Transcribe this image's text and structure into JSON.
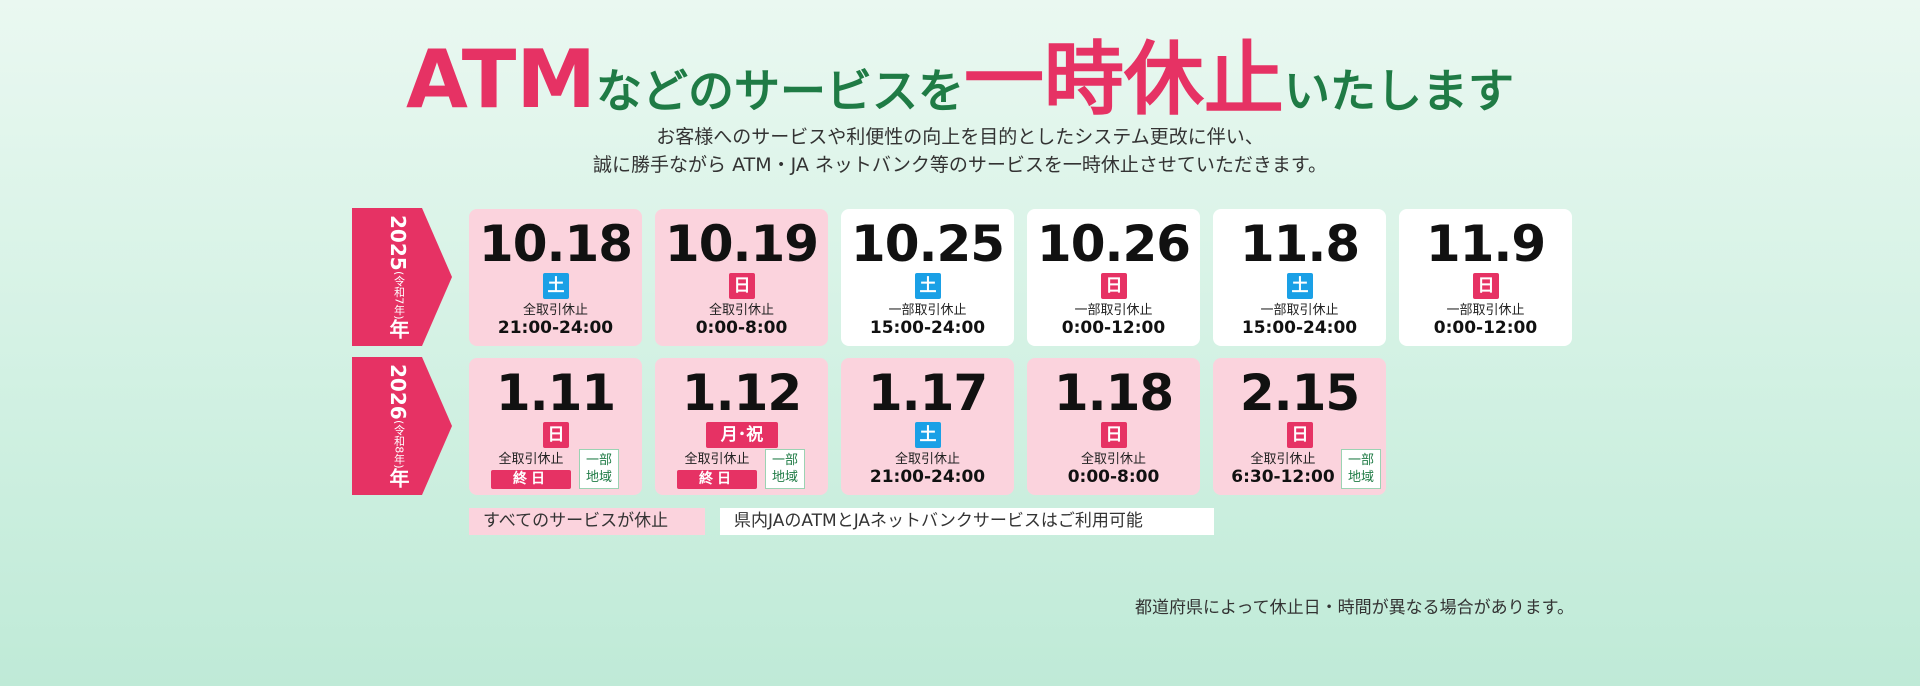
{
  "title": {
    "atm": "ATM",
    "part1": "などのサービスを",
    "highlight": "一時休止",
    "part2": "いたします"
  },
  "subtitle": {
    "line1": "お客様へのサービスや利便性の向上を目的としたシステム更改に伴い、",
    "line2": "誠に勝手ながら ATM・JA ネットバンク等のサービスを一時休止させていただきます。"
  },
  "years": [
    {
      "year": "2025",
      "era": "(令和7年)",
      "suffix": "年"
    },
    {
      "year": "2026",
      "era": "(令和8年)",
      "suffix": "年"
    }
  ],
  "row1": [
    {
      "date": "10.18",
      "day": "土",
      "kind": "全取引休止",
      "time": "21:00-24:00",
      "pink": true,
      "dayType": "sat"
    },
    {
      "date": "10.19",
      "day": "日",
      "kind": "全取引休止",
      "time": "0:00-8:00",
      "pink": true,
      "dayType": "sun"
    },
    {
      "date": "10.25",
      "day": "土",
      "kind": "一部取引休止",
      "time": "15:00-24:00",
      "pink": false,
      "dayType": "sat"
    },
    {
      "date": "10.26",
      "day": "日",
      "kind": "一部取引休止",
      "time": "0:00-12:00",
      "pink": false,
      "dayType": "sun"
    },
    {
      "date": "11.8",
      "day": "土",
      "kind": "一部取引休止",
      "time": "15:00-24:00",
      "pink": false,
      "dayType": "sat"
    },
    {
      "date": "11.9",
      "day": "日",
      "kind": "一部取引休止",
      "time": "0:00-12:00",
      "pink": false,
      "dayType": "sun"
    }
  ],
  "row2": [
    {
      "date": "1.11",
      "day": "日",
      "kind": "全取引休止",
      "allday": "終日",
      "region": [
        "一部",
        "地域"
      ],
      "dayType": "sun"
    },
    {
      "date": "1.12",
      "day": "月･祝",
      "kind": "全取引休止",
      "allday": "終日",
      "region": [
        "一部",
        "地域"
      ],
      "dayType": "sun",
      "wide": true
    },
    {
      "date": "1.17",
      "day": "土",
      "kind": "全取引休止",
      "time": "21:00-24:00",
      "dayType": "sat"
    },
    {
      "date": "1.18",
      "day": "日",
      "kind": "全取引休止",
      "time": "0:00-8:00",
      "dayType": "sun"
    },
    {
      "date": "2.15",
      "day": "日",
      "kind": "全取引休止",
      "time": "6:30-12:00",
      "region": [
        "一部",
        "地域"
      ],
      "dayType": "sun",
      "shift": true
    }
  ],
  "legend": {
    "all": "すべてのサービスが休止",
    "partial": "県内JAのATMとJAネットバンクサービスはご利用可能"
  },
  "note": "都道府県によって休止日・時間が異なる場合があります。",
  "colors": {
    "pink": "#e63264",
    "green": "#1f7b45",
    "saturday": "#1aa0e6",
    "card_pink": "#fbd3dd"
  }
}
